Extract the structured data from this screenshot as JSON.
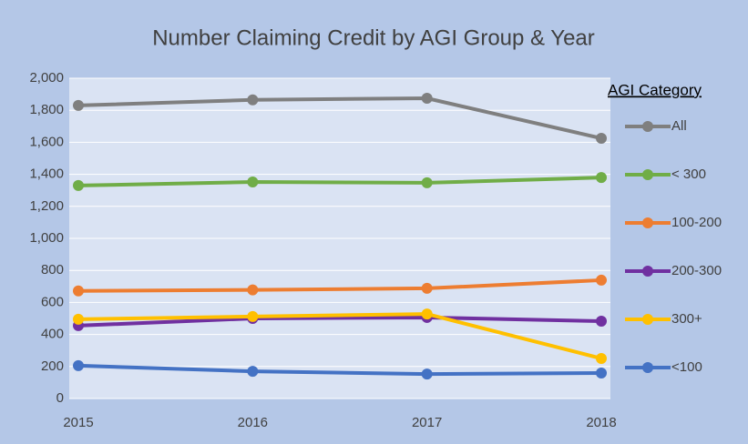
{
  "chart_data": {
    "type": "line",
    "title": "Number Claiming Credit by AGI Group & Year",
    "legend_title": "AGI Category",
    "legend_position": "right",
    "grid": true,
    "categories": [
      "2015",
      "2016",
      "2017",
      "2018"
    ],
    "ylim": [
      0,
      2000
    ],
    "yticks": [
      0,
      200,
      400,
      600,
      800,
      {
        "value": 1000,
        "label": "1,000"
      },
      {
        "value": 1200,
        "label": "1,200"
      },
      {
        "value": 1400,
        "label": "1,400"
      },
      {
        "value": 1600,
        "label": "1,600"
      },
      {
        "value": 1800,
        "label": "1,800"
      },
      {
        "value": 2000,
        "label": "2,000"
      }
    ],
    "series": [
      {
        "name": "All",
        "color": "#7f7f7f",
        "values": [
          1830,
          1865,
          1875,
          1625
        ]
      },
      {
        "name": "< 300",
        "color": "#70ad47",
        "values": [
          1330,
          1352,
          1347,
          1380
        ]
      },
      {
        "name": "100-200",
        "color": "#ed7d31",
        "values": [
          672,
          678,
          688,
          739
        ]
      },
      {
        "name": "200-300",
        "color": "#7030a0",
        "values": [
          455,
          500,
          506,
          483
        ]
      },
      {
        "name": "300+",
        "color": "#ffc000",
        "values": [
          495,
          512,
          528,
          250
        ]
      },
      {
        "name": "<100",
        "color": "#4472c4",
        "values": [
          205,
          170,
          153,
          159
        ]
      }
    ]
  }
}
